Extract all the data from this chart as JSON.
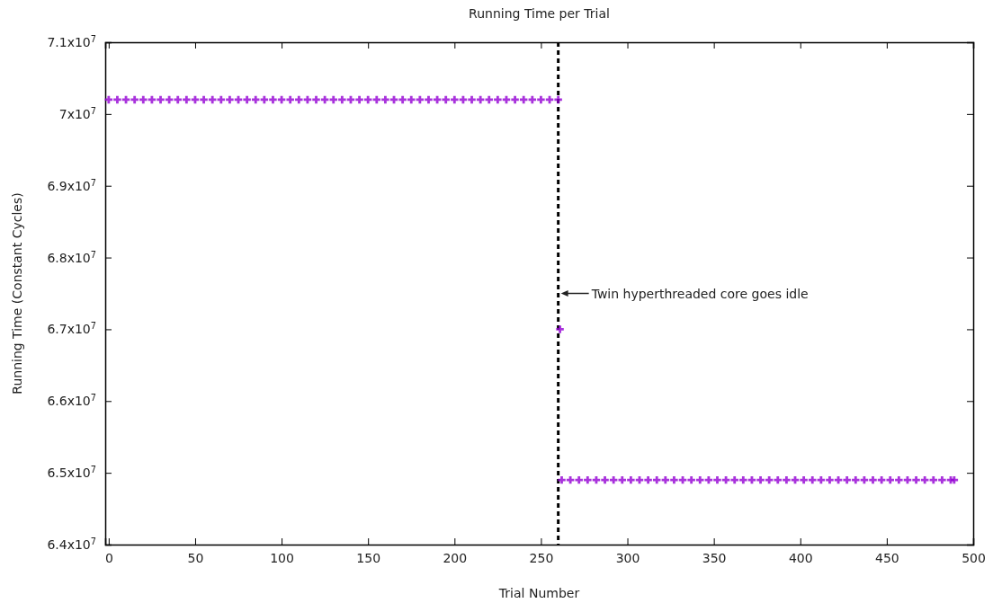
{
  "chart_data": {
    "type": "scatter",
    "title": "Running Time per Trial",
    "xlabel": "Trial Number",
    "ylabel": "Running Time (Constant Cycles)",
    "xlim": [
      -2,
      500
    ],
    "xticks": [
      0,
      50,
      100,
      150,
      200,
      250,
      300,
      350,
      400,
      450,
      500
    ],
    "ylim": [
      64000000,
      71000000
    ],
    "yticks": [
      {
        "value": 64000000,
        "label": "6.4x10$^{7}$"
      },
      {
        "value": 65000000,
        "label": "6.5x10$^{7}$"
      },
      {
        "value": 66000000,
        "label": "6.6x10$^{7}$"
      },
      {
        "value": 67000000,
        "label": "6.7x10$^{7}$"
      },
      {
        "value": 68000000,
        "label": "6.8x10$^{7}$"
      },
      {
        "value": 69000000,
        "label": "6.9x10$^{7}$"
      },
      {
        "value": 70000000,
        "label": "7x10$^{7}$"
      },
      {
        "value": 71000000,
        "label": "7.1x10$^{7}$"
      }
    ],
    "grid": false,
    "marker": "cross",
    "series": [
      {
        "color": "#9400d3",
        "x": [
          0,
          5,
          10,
          15,
          20,
          25,
          30,
          35,
          40,
          45,
          50,
          55,
          60,
          65,
          70,
          75,
          80,
          85,
          90,
          95,
          100,
          105,
          110,
          115,
          120,
          125,
          130,
          135,
          140,
          145,
          150,
          155,
          160,
          165,
          170,
          175,
          180,
          185,
          190,
          195,
          200,
          205,
          210,
          215,
          220,
          225,
          230,
          235,
          240,
          245,
          250,
          255,
          260,
          261,
          262,
          267,
          272,
          277,
          282,
          287,
          292,
          297,
          302,
          307,
          312,
          317,
          322,
          327,
          332,
          337,
          342,
          347,
          352,
          357,
          362,
          367,
          372,
          377,
          382,
          387,
          392,
          397,
          402,
          407,
          412,
          417,
          422,
          427,
          432,
          437,
          442,
          447,
          452,
          457,
          462,
          467,
          472,
          477,
          482,
          487,
          489
        ],
        "values": [
          70200000,
          70200000,
          70200000,
          70200000,
          70200000,
          70200000,
          70200000,
          70200000,
          70200000,
          70200000,
          70200000,
          70200000,
          70200000,
          70200000,
          70200000,
          70200000,
          70200000,
          70200000,
          70200000,
          70200000,
          70200000,
          70200000,
          70200000,
          70200000,
          70200000,
          70200000,
          70200000,
          70200000,
          70200000,
          70200000,
          70200000,
          70200000,
          70200000,
          70200000,
          70200000,
          70200000,
          70200000,
          70200000,
          70200000,
          70200000,
          70200000,
          70200000,
          70200000,
          70200000,
          70200000,
          70200000,
          70200000,
          70200000,
          70200000,
          70200000,
          70200000,
          70200000,
          70200000,
          67000000,
          64900000,
          64900000,
          64900000,
          64900000,
          64900000,
          64900000,
          64900000,
          64900000,
          64900000,
          64900000,
          64900000,
          64900000,
          64900000,
          64900000,
          64900000,
          64900000,
          64900000,
          64900000,
          64900000,
          64900000,
          64900000,
          64900000,
          64900000,
          64900000,
          64900000,
          64900000,
          64900000,
          64900000,
          64900000,
          64900000,
          64900000,
          64900000,
          64900000,
          64900000,
          64900000,
          64900000,
          64900000,
          64900000,
          64900000,
          64900000,
          64900000,
          64900000,
          64900000,
          64900000,
          64900000,
          64900000,
          64900000
        ]
      }
    ],
    "ref_lines": [
      {
        "axis": "x",
        "value": 260,
        "label": null,
        "color": "#000000",
        "line_style": "dashed"
      }
    ],
    "annotations": [
      {
        "text": "Twin hyperthreaded core goes idle",
        "x": 260,
        "y": 67500000
      }
    ]
  }
}
